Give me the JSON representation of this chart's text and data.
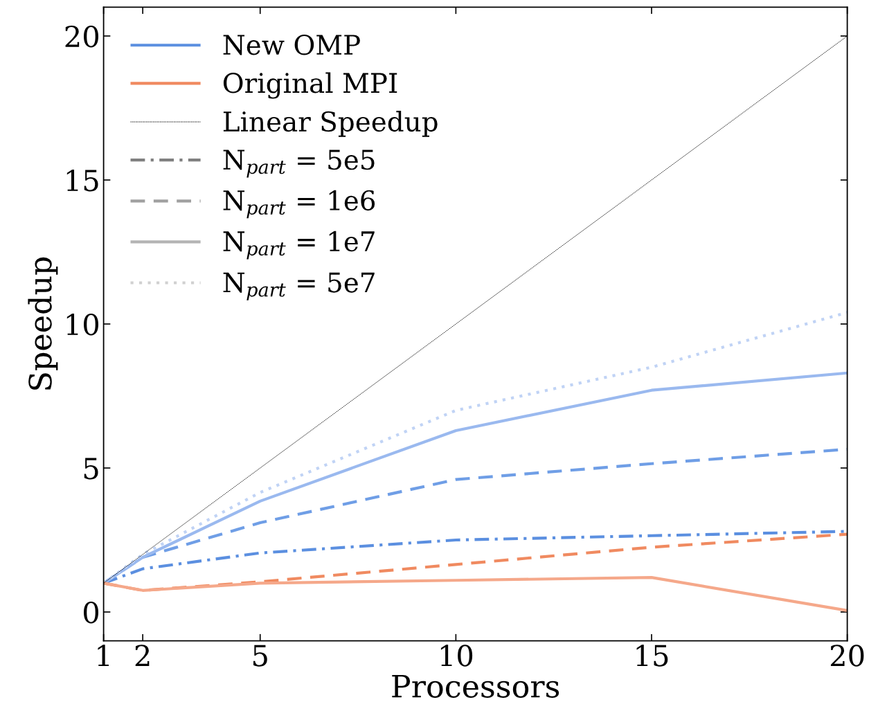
{
  "chart_data": {
    "type": "line",
    "xlabel": "Processors",
    "ylabel": "Speedup",
    "x": [
      1,
      2,
      5,
      10,
      15,
      20
    ],
    "xlim": [
      1,
      20
    ],
    "ylim": [
      -1,
      21
    ],
    "xticks": [
      1,
      2,
      5,
      10,
      15,
      20
    ],
    "yticks": [
      0,
      5,
      10,
      15,
      20
    ],
    "grid": false,
    "legend": "top left",
    "marker": "none",
    "series": [
      {
        "color": "#5b8fe0",
        "line_style": "dashdot",
        "values": [
          1,
          1.5,
          2.05,
          2.5,
          2.65,
          2.8
        ]
      },
      {
        "color": "#6f9ee6",
        "line_style": "dashed",
        "values": [
          1,
          1.9,
          3.1,
          4.6,
          5.15,
          5.65
        ]
      },
      {
        "color": "#9ab9ef",
        "line_style": "solid",
        "values": [
          1,
          1.9,
          3.85,
          6.3,
          7.7,
          8.3
        ]
      },
      {
        "color": "#c0d3f5",
        "line_style": "dotted",
        "values": [
          1,
          2.0,
          4.15,
          7.0,
          8.5,
          10.4
        ]
      },
      {
        "color": "#f08a60",
        "line_style": "dashed",
        "values": [
          1,
          0.75,
          1.05,
          1.65,
          2.25,
          2.7
        ]
      },
      {
        "color": "#f5a88a",
        "line_style": "solid",
        "values": [
          1,
          0.75,
          1.0,
          1.1,
          1.2,
          0.05
        ]
      },
      {
        "name": "New OMP",
        "color": "#5b8fe0",
        "line_style": "solid",
        "values": [
          null,
          null,
          null,
          null,
          null,
          null
        ]
      },
      {
        "name": "Original MPI",
        "color": "#f08a60",
        "line_style": "solid",
        "values": [
          null,
          null,
          null,
          null,
          null,
          null
        ]
      },
      {
        "name": "Linear Speedup",
        "color": "#000000",
        "line_style": "thin",
        "x": [
          1,
          20
        ],
        "values": [
          1,
          20
        ]
      },
      {
        "name": "N$_{part}$ = 5e5",
        "color": "#808080",
        "line_style": "dashdot",
        "values": [
          null,
          null,
          null,
          null,
          null,
          null
        ]
      },
      {
        "name": "N$_{part}$ = 1e6",
        "color": "#a0a0a0",
        "line_style": "dashed",
        "values": [
          null,
          null,
          null,
          null,
          null,
          null
        ]
      },
      {
        "name": "N$_{part}$ = 1e7",
        "color": "#b4b4b4",
        "line_style": "solid",
        "values": [
          null,
          null,
          null,
          null,
          null,
          null
        ]
      },
      {
        "name": "N$_{part}$ = 5e7",
        "color": "#d0d0d0",
        "line_style": "dotted",
        "values": [
          null,
          null,
          null,
          null,
          null,
          null
        ]
      }
    ]
  }
}
